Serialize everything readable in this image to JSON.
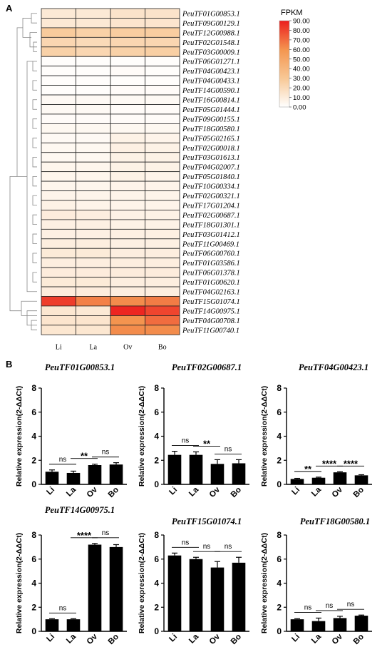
{
  "panel_labels": {
    "a": "A",
    "b": "B"
  },
  "chart_data": [
    {
      "type": "heatmap",
      "id": "heatmap",
      "columns": [
        "Li",
        "La",
        "Ov",
        "Bo"
      ],
      "legend_title": "FPKM",
      "legend_ticks": [
        "0.00",
        "10.00",
        "20.00",
        "30.00",
        "40.00",
        "50.00",
        "60.00",
        "70.00",
        "80.00",
        "90.00"
      ],
      "scale": [
        0,
        90
      ],
      "rows": [
        {
          "gene": "PeuTF01G00853.1",
          "values": [
            12,
            12,
            15,
            15
          ]
        },
        {
          "gene": "PeuTF09G00129.1",
          "values": [
            12,
            12,
            14,
            14
          ]
        },
        {
          "gene": "PeuTF12G00988.1",
          "values": [
            28,
            25,
            27,
            27
          ]
        },
        {
          "gene": "PeuTF02G01548.1",
          "values": [
            22,
            20,
            22,
            22
          ]
        },
        {
          "gene": "PeuTF03G00009.1",
          "values": [
            25,
            22,
            25,
            26
          ]
        },
        {
          "gene": "PeuTF06G01271.1",
          "values": [
            1,
            1,
            1,
            1
          ]
        },
        {
          "gene": "PeuTF04G00423.1",
          "values": [
            1,
            1,
            2,
            1
          ]
        },
        {
          "gene": "PeuTF04G00433.1",
          "values": [
            1,
            1,
            1,
            1
          ]
        },
        {
          "gene": "PeuTF14G00590.1",
          "values": [
            1,
            1,
            2,
            2
          ]
        },
        {
          "gene": "PeuTF16G00814.1",
          "values": [
            3,
            3,
            3,
            3
          ]
        },
        {
          "gene": "PeuTF05G01444.1",
          "values": [
            3,
            3,
            2,
            2
          ]
        },
        {
          "gene": "PeuTF09G00155.1",
          "values": [
            2,
            2,
            2,
            2
          ]
        },
        {
          "gene": "PeuTF18G00580.1",
          "values": [
            4,
            4,
            4,
            4
          ]
        },
        {
          "gene": "PeuTF05G02165.1",
          "values": [
            3,
            3,
            7,
            6
          ]
        },
        {
          "gene": "PeuTF02G00018.1",
          "values": [
            4,
            4,
            8,
            7
          ]
        },
        {
          "gene": "PeuTF03G01613.1",
          "values": [
            4,
            4,
            7,
            7
          ]
        },
        {
          "gene": "PeuTF04G02007.1",
          "values": [
            5,
            5,
            7,
            7
          ]
        },
        {
          "gene": "PeuTF05G01840.1",
          "values": [
            5,
            5,
            7,
            6
          ]
        },
        {
          "gene": "PeuTF10G00334.1",
          "values": [
            5,
            5,
            6,
            6
          ]
        },
        {
          "gene": "PeuTF02G00321.1",
          "values": [
            6,
            6,
            6,
            6
          ]
        },
        {
          "gene": "PeuTF17G01204.1",
          "values": [
            7,
            6,
            6,
            6
          ]
        },
        {
          "gene": "PeuTF02G00687.1",
          "values": [
            10,
            9,
            7,
            7
          ]
        },
        {
          "gene": "PeuTF18G01301.1",
          "values": [
            8,
            8,
            7,
            7
          ]
        },
        {
          "gene": "PeuTF03G01412.1",
          "values": [
            8,
            8,
            8,
            8
          ]
        },
        {
          "gene": "PeuTF11G00469.1",
          "values": [
            9,
            9,
            8,
            8
          ]
        },
        {
          "gene": "PeuTF06G00760.1",
          "values": [
            11,
            11,
            9,
            9
          ]
        },
        {
          "gene": "PeuTF01G03586.1",
          "values": [
            9,
            9,
            9,
            9
          ]
        },
        {
          "gene": "PeuTF06G01378.1",
          "values": [
            10,
            10,
            10,
            10
          ]
        },
        {
          "gene": "PeuTF01G00620.1",
          "values": [
            11,
            11,
            9,
            9
          ]
        },
        {
          "gene": "PeuTF04G02163.1",
          "values": [
            10,
            10,
            9,
            9
          ]
        },
        {
          "gene": "PeuTF15G01074.1",
          "values": [
            82,
            65,
            62,
            66
          ]
        },
        {
          "gene": "PeuTF14G00975.1",
          "values": [
            13,
            12,
            88,
            80
          ]
        },
        {
          "gene": "PeuTF04G00708.1",
          "values": [
            14,
            14,
            60,
            70
          ]
        },
        {
          "gene": "PeuTF11G00740.1",
          "values": [
            13,
            13,
            62,
            62
          ]
        }
      ]
    },
    {
      "type": "bar",
      "id": "bar1",
      "title": "PeuTF01G00853.1",
      "categories": [
        "Li",
        "La",
        "Ov",
        "Bo"
      ],
      "values": [
        1.05,
        0.95,
        1.6,
        1.65
      ],
      "errors": [
        0.15,
        0.15,
        0.08,
        0.15
      ],
      "ylabel": "Relative expression(2-ΔΔCt)",
      "ylim": [
        0,
        8
      ],
      "yticks": [
        "0",
        "2",
        "4",
        "6",
        "8"
      ],
      "significance": [
        {
          "from": 0,
          "to": 1,
          "label": "ns"
        },
        {
          "from": 1,
          "to": 2,
          "label": "**"
        },
        {
          "from": 2,
          "to": 3,
          "label": "ns"
        }
      ]
    },
    {
      "type": "bar",
      "id": "bar2",
      "title": "PeuTF02G00687.1",
      "categories": [
        "Li",
        "La",
        "Ov",
        "Bo"
      ],
      "values": [
        2.45,
        2.45,
        1.7,
        1.75
      ],
      "errors": [
        0.3,
        0.25,
        0.35,
        0.3
      ],
      "ylabel": "Relative expression(2-ΔΔCt)",
      "ylim": [
        0,
        8
      ],
      "yticks": [
        "0",
        "2",
        "4",
        "6",
        "8"
      ],
      "significance": [
        {
          "from": 0,
          "to": 1,
          "label": "ns"
        },
        {
          "from": 1,
          "to": 2,
          "label": "**"
        },
        {
          "from": 2,
          "to": 3,
          "label": "ns"
        }
      ]
    },
    {
      "type": "bar",
      "id": "bar3",
      "title": "PeuTF04G00423.1",
      "categories": [
        "Li",
        "La",
        "Ov",
        "Bo"
      ],
      "values": [
        0.45,
        0.55,
        1.0,
        0.75
      ],
      "errors": [
        0.05,
        0.05,
        0.05,
        0.05
      ],
      "ylabel": "Relative expression(2-ΔΔCt)",
      "ylim": [
        0,
        8
      ],
      "yticks": [
        "0",
        "2",
        "4",
        "6",
        "8"
      ],
      "significance": [
        {
          "from": 0,
          "to": 1,
          "label": "**"
        },
        {
          "from": 1,
          "to": 2,
          "label": "****"
        },
        {
          "from": 2,
          "to": 3,
          "label": "****"
        }
      ]
    },
    {
      "type": "bar",
      "id": "bar4",
      "title": "PeuTF14G00975.1",
      "categories": [
        "Li",
        "La",
        "Ov",
        "Bo"
      ],
      "values": [
        1.0,
        1.0,
        7.2,
        7.0
      ],
      "errors": [
        0.05,
        0.05,
        0.1,
        0.2
      ],
      "ylabel": "Relative expression(2-ΔΔCt)",
      "ylim": [
        0,
        8
      ],
      "yticks": [
        "0",
        "2",
        "4",
        "6",
        "8"
      ],
      "significance": [
        {
          "from": 0,
          "to": 1,
          "label": "ns"
        },
        {
          "from": 1,
          "to": 2,
          "label": "****"
        },
        {
          "from": 2,
          "to": 3,
          "label": "ns"
        }
      ]
    },
    {
      "type": "bar",
      "id": "bar5",
      "title": "PeuTF15G01074.1",
      "categories": [
        "Li",
        "La",
        "Ov",
        "Bo"
      ],
      "values": [
        6.3,
        6.0,
        5.3,
        5.7
      ],
      "errors": [
        0.2,
        0.15,
        0.5,
        0.45
      ],
      "ylabel": "Relative expression(2-ΔΔCt)",
      "ylim": [
        0,
        8
      ],
      "yticks": [
        "0",
        "2",
        "4",
        "6",
        "8"
      ],
      "significance": [
        {
          "from": 0,
          "to": 1,
          "label": "ns"
        },
        {
          "from": 1,
          "to": 2,
          "label": "ns"
        },
        {
          "from": 2,
          "to": 3,
          "label": "ns"
        }
      ]
    },
    {
      "type": "bar",
      "id": "bar6",
      "title": "PeuTF18G00580.1",
      "categories": [
        "Li",
        "La",
        "Ov",
        "Bo"
      ],
      "values": [
        1.0,
        0.85,
        1.1,
        1.3
      ],
      "errors": [
        0.05,
        0.25,
        0.15,
        0.05
      ],
      "ylabel": "Relative expression(2-ΔΔCt)",
      "ylim": [
        0,
        8
      ],
      "yticks": [
        "0",
        "2",
        "4",
        "6",
        "8"
      ],
      "significance": [
        {
          "from": 0,
          "to": 1,
          "label": "ns"
        },
        {
          "from": 1,
          "to": 2,
          "label": "ns"
        },
        {
          "from": 2,
          "to": 3,
          "label": "ns"
        }
      ]
    }
  ]
}
